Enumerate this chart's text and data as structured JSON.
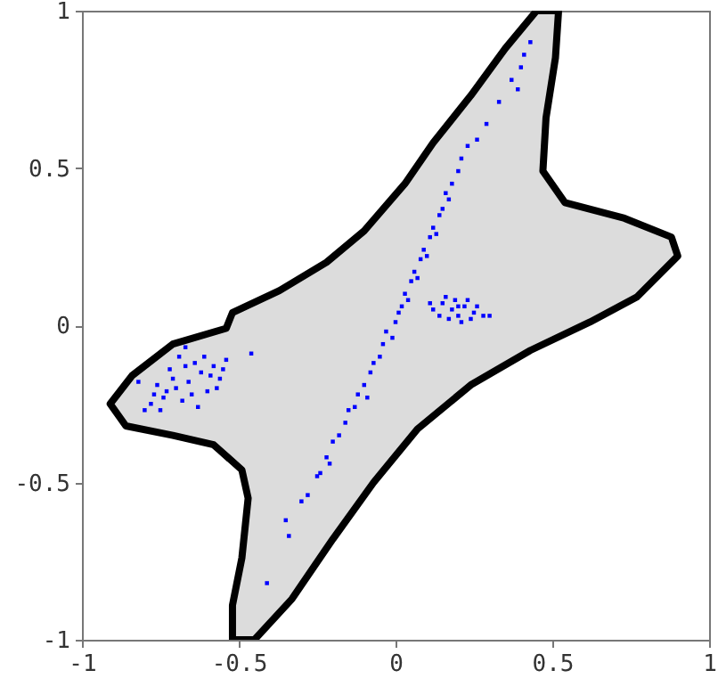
{
  "chart_data": {
    "type": "scatter",
    "xlim": [
      -1,
      1
    ],
    "ylim": [
      -1,
      1
    ],
    "xticks": [
      -1,
      -0.5,
      0,
      0.5,
      1
    ],
    "yticks": [
      -1,
      -0.5,
      0,
      0.5,
      1
    ],
    "series": [
      {
        "type": "area",
        "color": "#000000",
        "marker": "none",
        "x": [
          0.45,
          0.35,
          0.24,
          0.12,
          0.03,
          -0.1,
          -0.22,
          -0.37,
          -0.52,
          -0.54,
          -0.71,
          -0.84,
          -0.91,
          -0.86,
          -0.71,
          -0.58,
          -0.49,
          -0.47,
          -0.49,
          -0.52,
          -0.52,
          -0.45,
          -0.33,
          -0.2,
          -0.07,
          0.07,
          0.24,
          0.43,
          0.62,
          0.77,
          0.9,
          0.88,
          0.73,
          0.54,
          0.47,
          0.48,
          0.51,
          0.52,
          0.45
        ],
        "values": [
          1.0,
          0.88,
          0.73,
          0.58,
          0.45,
          0.3,
          0.2,
          0.11,
          0.04,
          -0.01,
          -0.06,
          -0.16,
          -0.25,
          -0.32,
          -0.35,
          -0.38,
          -0.46,
          -0.55,
          -0.74,
          -0.89,
          -1.0,
          -1.0,
          -0.87,
          -0.68,
          -0.5,
          -0.33,
          -0.19,
          -0.08,
          0.01,
          0.09,
          0.22,
          0.28,
          0.34,
          0.39,
          0.49,
          0.66,
          0.85,
          1.0,
          1.0
        ]
      },
      {
        "color": "#0000ff",
        "marker": "square",
        "x": [
          -0.41,
          -0.34,
          -0.35,
          -0.3,
          -0.28,
          -0.25,
          -0.24,
          -0.22,
          -0.21,
          -0.2,
          -0.18,
          -0.16,
          -0.15,
          -0.13,
          -0.12,
          -0.1,
          -0.09,
          -0.08,
          -0.07,
          -0.05,
          -0.04,
          -0.03,
          -0.01,
          0.0,
          0.01,
          0.02,
          0.03,
          0.04,
          0.05,
          0.06,
          0.07,
          0.08,
          0.09,
          0.1,
          0.11,
          0.12,
          0.13,
          0.14,
          0.15,
          0.16,
          0.17,
          0.18,
          0.2,
          0.21,
          0.23,
          0.26,
          0.29,
          0.33,
          0.37,
          0.39,
          0.4,
          0.41,
          0.43,
          -0.66,
          -0.7,
          -0.62,
          -0.74,
          -0.58,
          -0.68,
          -0.64,
          -0.76,
          -0.56,
          -0.72,
          -0.6,
          -0.78,
          -0.54,
          -0.69,
          -0.63,
          -0.75,
          -0.57,
          -0.71,
          -0.65,
          -0.61,
          -0.67,
          -0.73,
          -0.59,
          -0.77,
          -0.55,
          -0.82,
          -0.46,
          -0.67,
          -0.8,
          0.18,
          0.2,
          0.22,
          0.15,
          0.25,
          0.12,
          0.28,
          0.17,
          0.23,
          0.14,
          0.21,
          0.19,
          0.26,
          0.11,
          0.3,
          0.16,
          0.24,
          0.2
        ],
        "values": [
          -0.82,
          -0.67,
          -0.62,
          -0.56,
          -0.54,
          -0.48,
          -0.47,
          -0.42,
          -0.44,
          -0.37,
          -0.35,
          -0.31,
          -0.27,
          -0.26,
          -0.22,
          -0.19,
          -0.23,
          -0.15,
          -0.12,
          -0.1,
          -0.06,
          -0.02,
          -0.04,
          0.01,
          0.04,
          0.06,
          0.1,
          0.08,
          0.14,
          0.17,
          0.15,
          0.21,
          0.24,
          0.22,
          0.28,
          0.31,
          0.29,
          0.35,
          0.37,
          0.42,
          0.4,
          0.45,
          0.49,
          0.53,
          0.57,
          0.59,
          0.64,
          0.71,
          0.78,
          0.75,
          0.82,
          0.86,
          0.9,
          -0.18,
          -0.2,
          -0.15,
          -0.23,
          -0.13,
          -0.24,
          -0.12,
          -0.19,
          -0.17,
          -0.14,
          -0.21,
          -0.25,
          -0.11,
          -0.1,
          -0.26,
          -0.27,
          -0.2,
          -0.17,
          -0.22,
          -0.1,
          -0.13,
          -0.21,
          -0.16,
          -0.22,
          -0.14,
          -0.18,
          -0.09,
          -0.07,
          -0.27,
          0.05,
          0.03,
          0.06,
          0.07,
          0.04,
          0.05,
          0.03,
          0.02,
          0.08,
          0.03,
          0.01,
          0.08,
          0.06,
          0.07,
          0.03,
          0.09,
          0.02,
          0.06
        ]
      }
    ]
  }
}
